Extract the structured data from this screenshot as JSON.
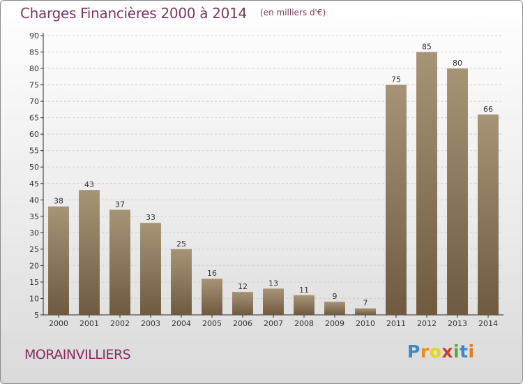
{
  "chart_data": {
    "type": "bar",
    "title": "Charges Financières 2000 à 2014",
    "unit_note": "(en milliers d'€)",
    "categories": [
      "2000",
      "2001",
      "2002",
      "2003",
      "2004",
      "2005",
      "2006",
      "2007",
      "2008",
      "2009",
      "2010",
      "2011",
      "2012",
      "2013",
      "2014"
    ],
    "values": [
      38,
      43,
      37,
      33,
      25,
      16,
      12,
      13,
      11,
      9,
      7,
      75,
      85,
      80,
      66
    ],
    "ylim": [
      5,
      90
    ],
    "yticks": [
      5,
      10,
      15,
      20,
      25,
      30,
      35,
      40,
      45,
      50,
      55,
      60,
      65,
      70,
      75,
      80,
      85,
      90
    ],
    "grid": true,
    "bar_color_top": "#a79477",
    "bar_color_bottom": "#6f5a3f",
    "axis_color": "#2a2a2a"
  },
  "footer": {
    "commune": "MORAINVILLIERS",
    "brand_letters": [
      "P",
      "r",
      "o",
      "x",
      "i",
      "t",
      "i"
    ],
    "brand_colors": [
      "#3f86c8",
      "#f08a1c",
      "#e4d41a",
      "#d23a2a",
      "#57a83a",
      "#3f86c8",
      "#e27b1a"
    ]
  }
}
